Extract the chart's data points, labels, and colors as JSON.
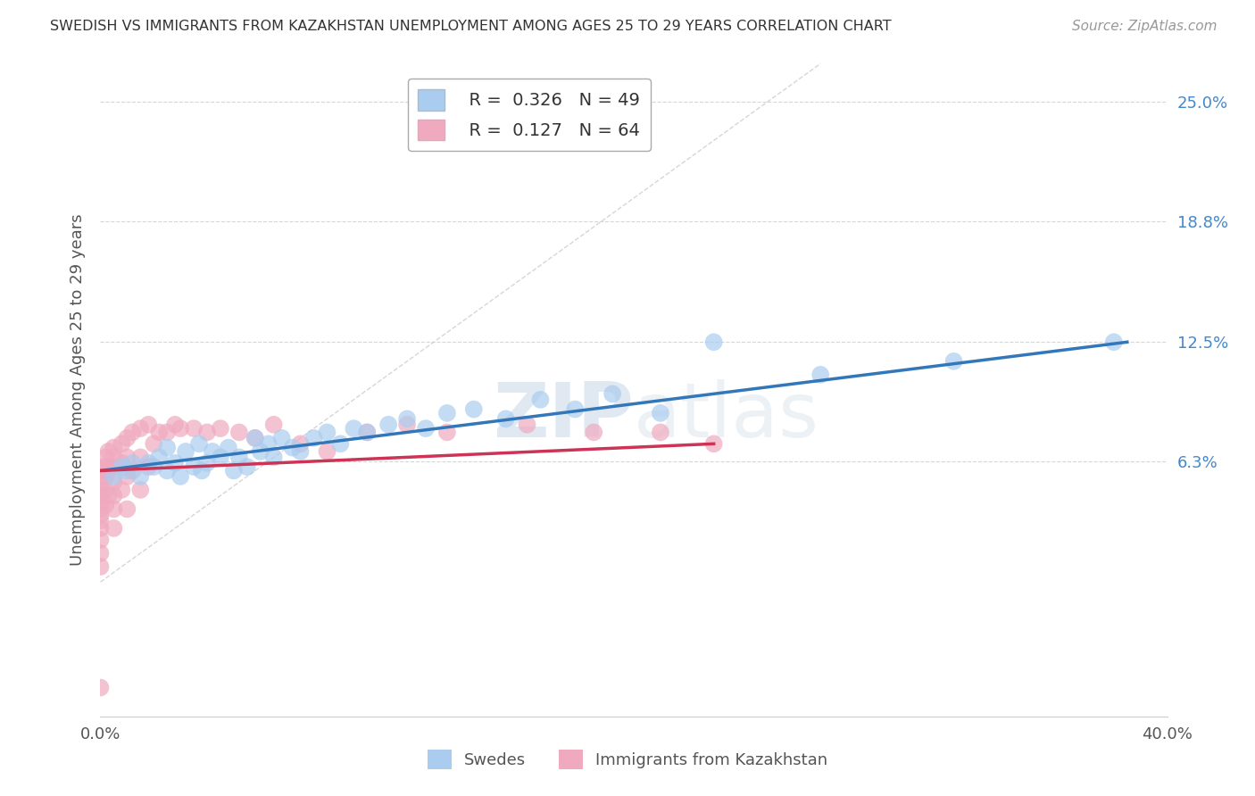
{
  "title": "SWEDISH VS IMMIGRANTS FROM KAZAKHSTAN UNEMPLOYMENT AMONG AGES 25 TO 29 YEARS CORRELATION CHART",
  "source": "Source: ZipAtlas.com",
  "ylabel": "Unemployment Among Ages 25 to 29 years",
  "xlim": [
    0.0,
    0.4
  ],
  "ylim": [
    -0.07,
    0.27
  ],
  "ytick_positions": [
    0.063,
    0.125,
    0.188,
    0.25
  ],
  "ytick_labels": [
    "6.3%",
    "12.5%",
    "18.8%",
    "25.0%"
  ],
  "grid_color": "#cccccc",
  "background_color": "#ffffff",
  "swedes_color": "#aaccee",
  "kazakh_color": "#f0aac0",
  "swede_line_color": "#3377bb",
  "kazakh_line_color": "#cc3355",
  "R_swedes": 0.326,
  "N_swedes": 49,
  "R_kazakh": 0.127,
  "N_kazakh": 64,
  "legend_label_swedes": "Swedes",
  "legend_label_kazakh": "Immigrants from Kazakhstan",
  "watermark_zip": "ZIP",
  "watermark_atlas": "atlas",
  "swedes_x": [
    0.005,
    0.008,
    0.01,
    0.012,
    0.015,
    0.018,
    0.02,
    0.022,
    0.025,
    0.025,
    0.028,
    0.03,
    0.032,
    0.035,
    0.037,
    0.038,
    0.04,
    0.042,
    0.045,
    0.048,
    0.05,
    0.052,
    0.055,
    0.058,
    0.06,
    0.063,
    0.065,
    0.068,
    0.072,
    0.075,
    0.08,
    0.085,
    0.09,
    0.095,
    0.1,
    0.108,
    0.115,
    0.122,
    0.13,
    0.14,
    0.152,
    0.165,
    0.178,
    0.192,
    0.21,
    0.23,
    0.27,
    0.32,
    0.38
  ],
  "swedes_y": [
    0.055,
    0.06,
    0.058,
    0.062,
    0.055,
    0.062,
    0.06,
    0.065,
    0.058,
    0.07,
    0.062,
    0.055,
    0.068,
    0.06,
    0.072,
    0.058,
    0.062,
    0.068,
    0.065,
    0.07,
    0.058,
    0.065,
    0.06,
    0.075,
    0.068,
    0.072,
    0.065,
    0.075,
    0.07,
    0.068,
    0.075,
    0.078,
    0.072,
    0.08,
    0.078,
    0.082,
    0.085,
    0.08,
    0.088,
    0.09,
    0.085,
    0.095,
    0.09,
    0.098,
    0.088,
    0.125,
    0.108,
    0.115,
    0.125
  ],
  "kazakh_x": [
    0.0,
    0.0,
    0.0,
    0.0,
    0.0,
    0.0,
    0.0,
    0.0,
    0.0,
    0.0,
    0.0,
    0.0,
    0.0,
    0.0,
    0.0,
    0.002,
    0.002,
    0.002,
    0.002,
    0.002,
    0.003,
    0.003,
    0.003,
    0.005,
    0.005,
    0.005,
    0.005,
    0.005,
    0.005,
    0.005,
    0.008,
    0.008,
    0.008,
    0.01,
    0.01,
    0.01,
    0.01,
    0.012,
    0.012,
    0.015,
    0.015,
    0.015,
    0.018,
    0.018,
    0.02,
    0.022,
    0.025,
    0.028,
    0.03,
    0.035,
    0.04,
    0.045,
    0.052,
    0.058,
    0.065,
    0.075,
    0.085,
    0.1,
    0.115,
    0.13,
    0.16,
    0.185,
    0.21,
    0.23
  ],
  "kazakh_y": [
    0.06,
    0.058,
    0.055,
    0.052,
    0.048,
    0.045,
    0.042,
    0.038,
    0.035,
    0.032,
    0.028,
    0.022,
    0.015,
    0.008,
    -0.055,
    0.065,
    0.06,
    0.055,
    0.048,
    0.04,
    0.068,
    0.058,
    0.045,
    0.07,
    0.065,
    0.06,
    0.052,
    0.045,
    0.038,
    0.028,
    0.072,
    0.062,
    0.048,
    0.075,
    0.065,
    0.055,
    0.038,
    0.078,
    0.058,
    0.08,
    0.065,
    0.048,
    0.082,
    0.06,
    0.072,
    0.078,
    0.078,
    0.082,
    0.08,
    0.08,
    0.078,
    0.08,
    0.078,
    0.075,
    0.082,
    0.072,
    0.068,
    0.078,
    0.082,
    0.078,
    0.082,
    0.078,
    0.078,
    0.072
  ],
  "swede_line_x": [
    0.0,
    0.385
  ],
  "swede_line_y": [
    0.058,
    0.125
  ],
  "kazakh_line_x": [
    0.0,
    0.23
  ],
  "kazakh_line_y": [
    0.058,
    0.072
  ]
}
